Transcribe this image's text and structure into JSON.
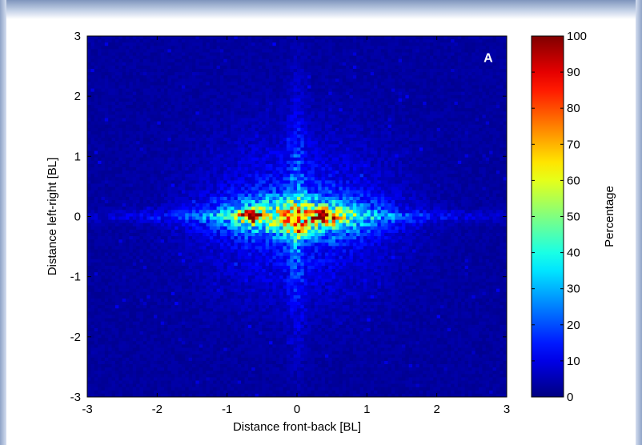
{
  "chart_data": {
    "type": "heatmap",
    "panel_label": "A",
    "xlabel": "Distance front-back [BL]",
    "ylabel": "Distance left-right [BL]",
    "xlim": [
      -3,
      3
    ],
    "ylim": [
      -3,
      3
    ],
    "xticks": [
      "-3",
      "-2",
      "-1",
      "0",
      "1",
      "2",
      "3"
    ],
    "yticks": [
      "-3",
      "-2",
      "-1",
      "0",
      "1",
      "2",
      "3"
    ],
    "colorbar": {
      "label": "Percentage",
      "range": [
        0,
        100
      ],
      "ticks": [
        "0",
        "10",
        "20",
        "30",
        "40",
        "50",
        "60",
        "70",
        "80",
        "90",
        "100"
      ],
      "colormap": "jet"
    },
    "grid": false,
    "description_features": {
      "hotspots": [
        {
          "x": -0.65,
          "y": 0.0,
          "value": 95
        },
        {
          "x": 0.45,
          "y": 0.0,
          "value": 90
        },
        {
          "x": 0.0,
          "y": -0.25,
          "value": 70
        }
      ],
      "background_value": 3
    }
  }
}
